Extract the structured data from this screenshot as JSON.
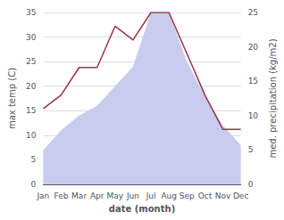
{
  "chart_data": {
    "type": "line",
    "categories": [
      "Jan",
      "Feb",
      "Mar",
      "Apr",
      "May",
      "Jun",
      "Jul",
      "Aug",
      "Sep",
      "Oct",
      "Nov",
      "Dec"
    ],
    "series": [
      {
        "type": "area",
        "color": "#c8ccee",
        "values": [
          7,
          11,
          14,
          16,
          20,
          24,
          35,
          35,
          25,
          18,
          12,
          8
        ]
      },
      {
        "type": "line",
        "color": "#993344",
        "axis": "y2",
        "values": [
          11,
          13,
          17,
          17,
          23,
          21,
          25,
          25,
          19,
          13,
          8,
          8
        ]
      }
    ],
    "xlabel": "date (month)",
    "ylabel": "max temp (C)",
    "y2label": "med. precipitation (kg/m2)",
    "ylim": [
      0,
      35
    ],
    "yticks": [
      0,
      5,
      10,
      15,
      20,
      25,
      30,
      35
    ],
    "y2lim": [
      0,
      25
    ],
    "y2ticks": [
      0,
      5,
      10,
      15,
      20,
      25
    ],
    "grid": true
  }
}
